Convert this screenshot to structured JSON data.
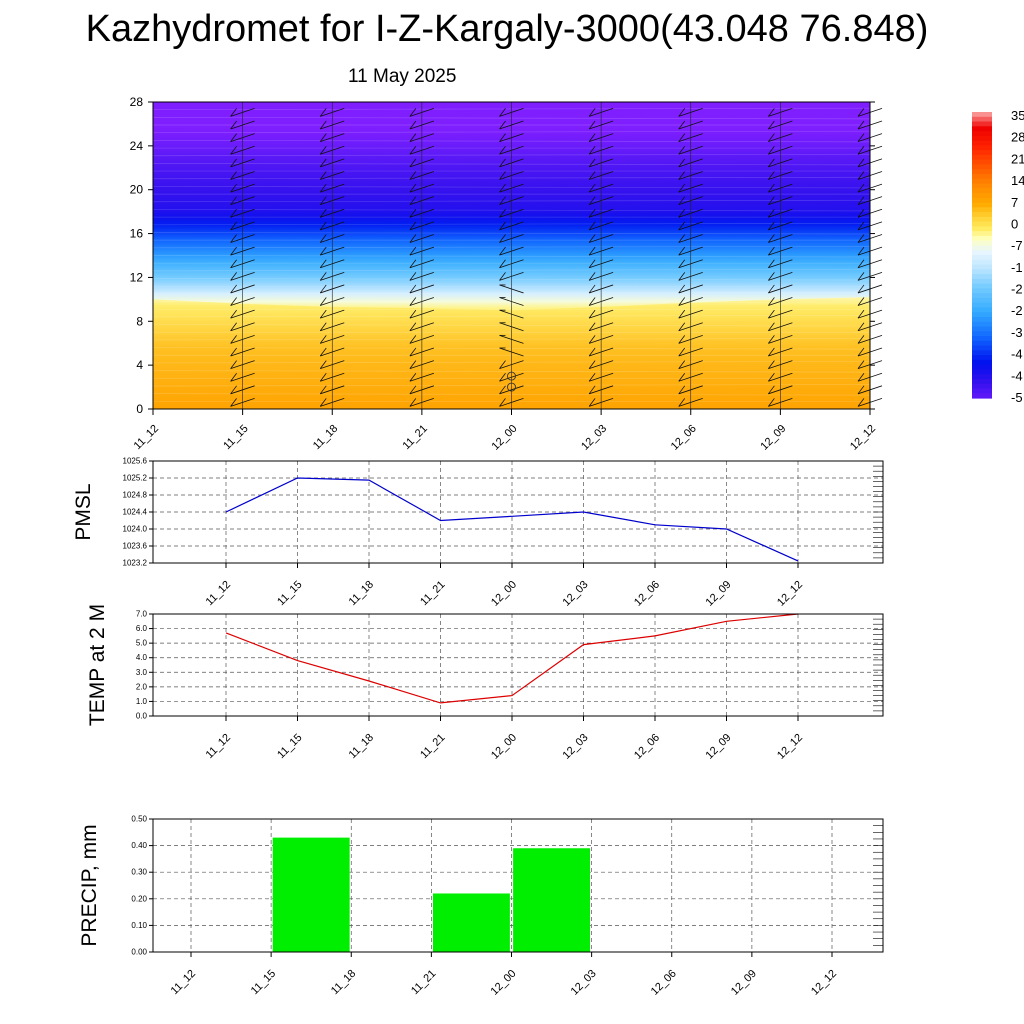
{
  "title": "Kazhydromet for I-Z-Kargaly-3000(43.048 76.848)",
  "subtitle": "11 May 2025",
  "colors": {
    "pmsl_line": "#0000cc",
    "temp_line": "#dd0000",
    "precip_bar": "#00ee00",
    "grid": "#555555"
  },
  "chart_data": [
    {
      "type": "heatmap",
      "title": "",
      "xlabel": "",
      "ylabel": "",
      "categories": [
        "11_12",
        "11_15",
        "11_18",
        "11_21",
        "12_00",
        "12_03",
        "12_06",
        "12_09",
        "12_12"
      ],
      "yticks": [
        "0",
        "4",
        "8",
        "12",
        "16",
        "20",
        "24",
        "28"
      ],
      "ylim": [
        0,
        28
      ],
      "colorbar_labels": [
        "35",
        "28",
        "21",
        "14",
        "7",
        "0",
        "-7",
        "-1",
        "-2",
        "-2",
        "-3",
        "-4",
        "-4",
        "-5"
      ],
      "colorbar_range": [
        -55,
        35
      ],
      "freezing_level": [
        10,
        9.6,
        9.3,
        9.2,
        9.0,
        9.3,
        9.7,
        10,
        10.2
      ],
      "layers": [
        {
          "from": 0,
          "to": 8.5,
          "value": 5
        },
        {
          "from": 8.5,
          "to": 10,
          "value": -3
        },
        {
          "from": 10,
          "to": 13,
          "value": -18
        },
        {
          "from": 13,
          "to": 16,
          "value": -32
        },
        {
          "from": 16,
          "to": 20,
          "value": -48
        },
        {
          "from": 20,
          "to": 23,
          "value": -52
        },
        {
          "from": 23,
          "to": 28,
          "value": -58
        }
      ],
      "grid": false,
      "wind_barbs": true
    },
    {
      "type": "line",
      "ylabel": "PMSL",
      "categories": [
        "11_12",
        "11_15",
        "11_18",
        "11_21",
        "12_00",
        "12_03",
        "12_06",
        "12_09",
        "12_12"
      ],
      "values": [
        1024.4,
        1025.2,
        1025.15,
        1024.2,
        1024.3,
        1024.4,
        1024.1,
        1024.0,
        1023.25
      ],
      "ylim": [
        1023.2,
        1025.6
      ],
      "yticks": [
        "1023.2",
        "1023.6",
        "1024.0",
        "1024.4",
        "1024.8",
        "1025.2",
        "1025.6"
      ],
      "grid": true
    },
    {
      "type": "line",
      "ylabel": "TEMP at 2 M",
      "categories": [
        "11_12",
        "11_15",
        "11_18",
        "11_21",
        "12_00",
        "12_03",
        "12_06",
        "12_09",
        "12_12"
      ],
      "values": [
        5.7,
        3.8,
        2.4,
        0.9,
        1.4,
        4.9,
        5.5,
        6.5,
        7.0
      ],
      "ylim": [
        0.0,
        7.0
      ],
      "yticks": [
        "0.0",
        "1.0",
        "2.0",
        "3.0",
        "4.0",
        "5.0",
        "6.0",
        "7.0"
      ],
      "grid": true
    },
    {
      "type": "bar",
      "ylabel": "PRECIP, mm",
      "categories": [
        "11_12",
        "11_15",
        "11_18",
        "11_21",
        "12_00",
        "12_03",
        "12_06",
        "12_09",
        "12_12"
      ],
      "values": [
        0,
        0.43,
        0,
        0.22,
        0.39,
        0,
        0,
        0,
        0
      ],
      "ylim": [
        0.0,
        0.5
      ],
      "yticks": [
        "0.00",
        "0.10",
        "0.20",
        "0.30",
        "0.40",
        "0.50"
      ],
      "grid": true
    }
  ]
}
